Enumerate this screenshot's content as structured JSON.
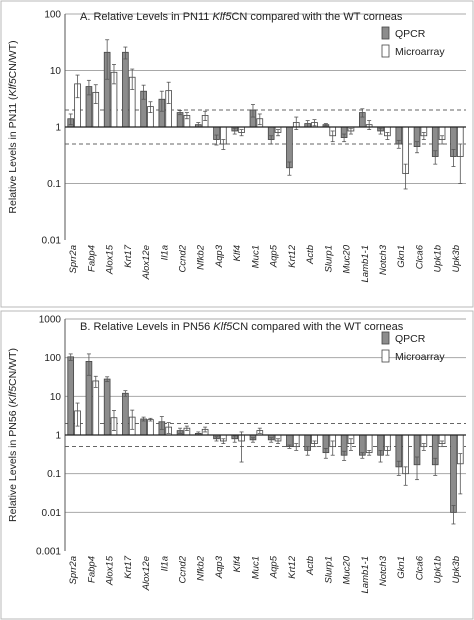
{
  "chart_data": [
    {
      "type": "bar",
      "title": "A. Relative Levels in PN11 Klf5CN compared with the WT corneas",
      "title_parts": {
        "pre": "A. Relative Levels in PN11 ",
        "italic": "Klf5",
        "post": "CN compared with the WT corneas"
      },
      "ylabel": "Relative Levels in PN11 (Klf5CN/WT)",
      "ylabel_parts": {
        "pre": "Relative Levels in PN11 (",
        "italic": "Klf5",
        "post": "CN/WT)"
      },
      "yscale": "log",
      "ylim": [
        0.01,
        100
      ],
      "yticks": [
        "0.01",
        "0.1",
        "1",
        "10",
        "100"
      ],
      "reference_lines": [
        0.5,
        2
      ],
      "legend": {
        "position": "top-right"
      },
      "categories": [
        "Sprr2a",
        "Fabp4",
        "Alox15",
        "Krt17",
        "Alox12e",
        "Il1a",
        "Ccnd2",
        "Nfkb2",
        "Aqp3",
        "Klf4",
        "Muc1",
        "Aqp5",
        "Krt12",
        "Actb",
        "Slurp1",
        "Muc20",
        "Lamb1-1",
        "Notch3",
        "Gkn1",
        "Clca6",
        "Upk1b",
        "Upk3b"
      ],
      "series": [
        {
          "name": "QPCR",
          "color": "#8c8c8c",
          "values": [
            1.4,
            5.2,
            21,
            21,
            4.3,
            3.1,
            1.8,
            1.1,
            0.6,
            0.85,
            2.0,
            0.6,
            0.19,
            1.15,
            1.1,
            0.65,
            1.8,
            0.85,
            0.5,
            0.45,
            0.3,
            0.3
          ],
          "errors": [
            0.3,
            1.5,
            14,
            5,
            1.2,
            1.2,
            0.15,
            0.1,
            0.12,
            0.1,
            0.5,
            0.1,
            0.05,
            0.15,
            0.05,
            0.1,
            0.3,
            0.1,
            0.08,
            0.1,
            0.08,
            0.1
          ]
        },
        {
          "name": "Microarray",
          "color": "#ffffff",
          "values": [
            5.8,
            4.1,
            9.3,
            7.6,
            2.3,
            4.4,
            1.6,
            1.6,
            0.5,
            0.8,
            1.4,
            0.8,
            1.2,
            1.2,
            0.7,
            0.85,
            1.1,
            0.7,
            0.15,
            0.7,
            0.6,
            0.3
          ],
          "errors": [
            2.5,
            1.5,
            3.5,
            3,
            0.5,
            1.8,
            0.2,
            0.3,
            0.1,
            0.1,
            0.3,
            0.1,
            0.3,
            0.15,
            0.15,
            0.1,
            0.2,
            0.1,
            0.07,
            0.1,
            0.1,
            0.2
          ]
        }
      ]
    },
    {
      "type": "bar",
      "title": "B. Relative Levels in PN56 Klf5CN compared with the WT corneas",
      "title_parts": {
        "pre": "B. Relative Levels in PN56 ",
        "italic": "Klf5",
        "post": "CN compared with the WT corneas"
      },
      "ylabel": "Relative Levels in PN56 (Klf5CN/WT)",
      "ylabel_parts": {
        "pre": "Relative Levels in PN56 (",
        "italic": "Klf5",
        "post": "CN/WT)"
      },
      "yscale": "log",
      "ylim": [
        0.001,
        1000
      ],
      "yticks": [
        "0.001",
        "0.01",
        "0.1",
        "1",
        "10",
        "100",
        "1000"
      ],
      "reference_lines": [
        0.5,
        2
      ],
      "legend": {
        "position": "top-right"
      },
      "categories": [
        "Sprr2a",
        "Fabp4",
        "Alox15",
        "Krt17",
        "Alox12e",
        "Il1a",
        "Ccnd2",
        "Nfkb2",
        "Aqp3",
        "Klf4",
        "Muc1",
        "Aqp5",
        "Krt12",
        "Actb",
        "Slurp1",
        "Muc20",
        "Lamb1-1",
        "Notch3",
        "Gkn1",
        "Clca6",
        "Upk1b",
        "Upk3b"
      ],
      "series": [
        {
          "name": "QPCR",
          "color": "#8c8c8c",
          "values": [
            105,
            80,
            28,
            12,
            2.6,
            2.2,
            1.3,
            1.1,
            0.8,
            0.8,
            0.75,
            0.75,
            0.5,
            0.4,
            0.35,
            0.3,
            0.3,
            0.3,
            0.15,
            0.17,
            0.17,
            0.01
          ],
          "errors": [
            20,
            45,
            4,
            2,
            0.3,
            0.8,
            0.2,
            0.1,
            0.1,
            0.15,
            0.1,
            0.1,
            0.05,
            0.1,
            0.1,
            0.08,
            0.05,
            0.1,
            0.06,
            0.1,
            0.08,
            0.005
          ]
        },
        {
          "name": "Microarray",
          "color": "#ffffff",
          "values": [
            4.2,
            25,
            2.8,
            2.9,
            2.5,
            1.6,
            1.5,
            1.4,
            0.7,
            0.7,
            1.3,
            0.7,
            0.5,
            0.6,
            0.5,
            0.6,
            0.35,
            0.4,
            0.1,
            0.5,
            0.6,
            0.18
          ],
          "errors": [
            2.5,
            8,
            1.5,
            1.5,
            0.2,
            0.5,
            0.2,
            0.2,
            0.1,
            0.5,
            0.2,
            0.1,
            0.1,
            0.1,
            0.2,
            0.2,
            0.05,
            0.1,
            0.05,
            0.1,
            0.1,
            0.15
          ]
        }
      ]
    }
  ]
}
